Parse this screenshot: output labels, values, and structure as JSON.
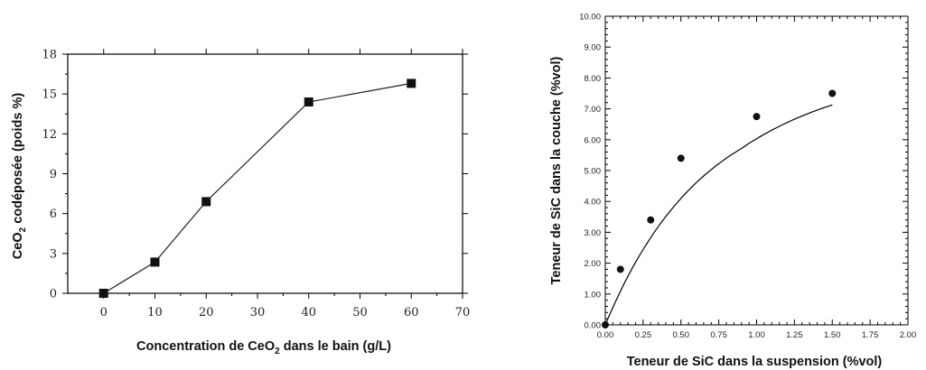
{
  "chart_data": [
    {
      "type": "line",
      "xlabel_main": "Concentration de CeO",
      "xlabel_sub": "2",
      "xlabel_tail": " dans le bain (g/L)",
      "ylabel_main": "CeO",
      "ylabel_sub": "2",
      "ylabel_tail": " codéposée (poids %)",
      "xlim": [
        -7,
        70
      ],
      "ylim": [
        0,
        18
      ],
      "x_ticks": [
        "0",
        "10",
        "20",
        "30",
        "40",
        "50",
        "60",
        "70"
      ],
      "y_ticks": [
        "0",
        "3",
        "6",
        "9",
        "12",
        "15",
        "18"
      ],
      "marker": "square",
      "series": [
        {
          "x": [
            0,
            10,
            20,
            40,
            60
          ],
          "values": [
            0,
            2.35,
            6.9,
            14.4,
            15.8
          ]
        }
      ]
    },
    {
      "type": "scatter",
      "xlabel": "Teneur de SiC dans la suspension (%vol)",
      "ylabel": "Teneur de  SiC dans la couche (%vol)",
      "xlim": [
        0,
        2
      ],
      "ylim": [
        0,
        10
      ],
      "x_ticks": [
        "0.00",
        "0.25",
        "0.50",
        "0.75",
        "1.00",
        "1.25",
        "1.50",
        "1.75",
        "2.00"
      ],
      "y_ticks": [
        "0.00",
        "1.00",
        "2.00",
        "3.00",
        "4.00",
        "5.00",
        "6.00",
        "7.00",
        "8.00",
        "9.00",
        "10.00"
      ],
      "marker": "circle",
      "trend": "smooth fitted curve",
      "series": [
        {
          "x": [
            0,
            0.1,
            0.3,
            0.5,
            1.0,
            1.5
          ],
          "values": [
            0,
            1.8,
            3.4,
            5.4,
            6.75,
            7.5
          ]
        }
      ]
    }
  ]
}
